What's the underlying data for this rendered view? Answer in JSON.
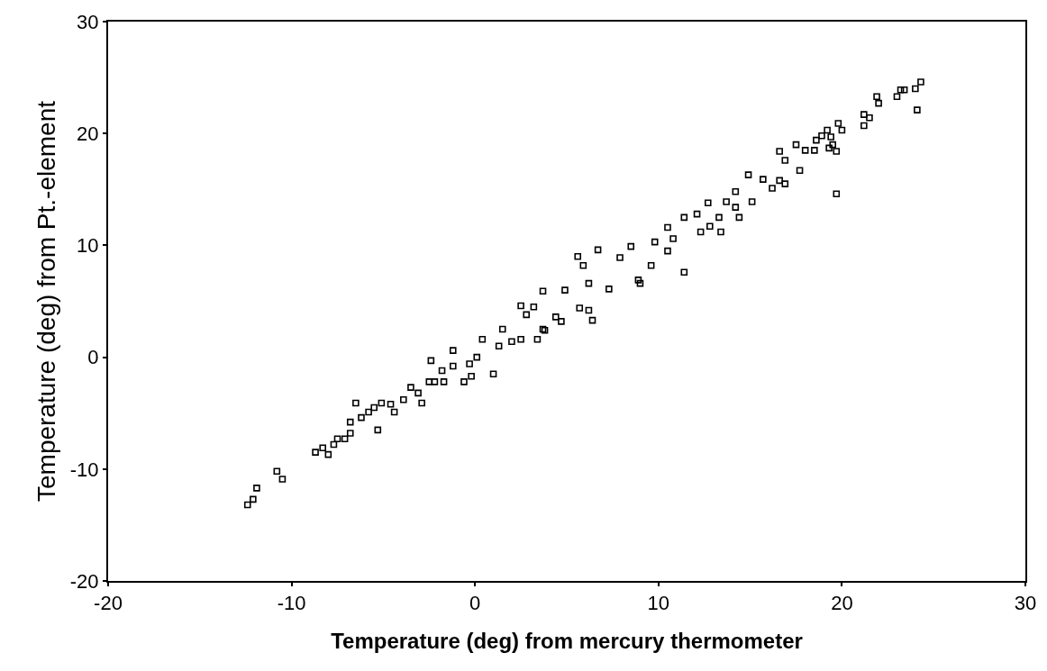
{
  "chart_data": {
    "type": "scatter",
    "xlabel": "Temperature (deg) from mercury thermometer",
    "ylabel": "Temperature (deg) from Pt.-element",
    "xlim": [
      -20,
      30
    ],
    "xticks": [
      -20,
      -10,
      0,
      10,
      20,
      30
    ],
    "ylim": [
      -20,
      30
    ],
    "yticks": [
      -20,
      -10,
      0,
      10,
      20,
      30
    ],
    "marker": "square",
    "series": [
      {
        "color": "#000000",
        "x": [
          -12.4,
          -12.1,
          -11.9,
          -10.8,
          -10.5,
          -8.7,
          -8.3,
          -8.0,
          -7.7,
          -7.5,
          -7.1,
          -6.8,
          -6.5,
          -6.8,
          -6.2,
          -5.8,
          -5.5,
          -5.3,
          -5.1,
          -4.6,
          -4.4,
          -3.9,
          -3.5,
          -3.1,
          -2.9,
          -2.4,
          -2.5,
          -2.2,
          -1.7,
          -1.8,
          -1.2,
          -1.2,
          -0.6,
          -0.2,
          -0.3,
          0.1,
          0.4,
          1.0,
          1.3,
          1.5,
          2.0,
          2.5,
          2.5,
          2.8,
          3.4,
          3.7,
          3.7,
          3.2,
          4.4,
          4.7,
          4.9,
          5.7,
          3.8,
          5.6,
          5.9,
          6.7,
          6.4,
          6.2,
          6.2,
          7.3,
          7.9,
          8.5,
          8.9,
          9.0,
          9.6,
          9.8,
          10.5,
          10.5,
          10.8,
          11.4,
          11.4,
          12.1,
          12.3,
          12.8,
          13.4,
          13.3,
          12.7,
          13.7,
          14.2,
          14.4,
          14.2,
          14.9,
          15.1,
          15.7,
          16.2,
          16.6,
          16.9,
          16.6,
          16.9,
          17.5,
          17.7,
          18.0,
          18.5,
          18.6,
          18.9,
          19.2,
          19.3,
          19.4,
          19.5,
          19.7,
          19.7,
          19.8,
          20.0,
          21.2,
          21.2,
          21.5,
          21.9,
          22.0,
          23.0,
          23.2,
          23.4,
          24.0,
          24.1,
          24.3
        ],
        "values": [
          -13.2,
          -12.7,
          -11.7,
          -10.2,
          -10.9,
          -8.5,
          -8.1,
          -8.7,
          -7.8,
          -7.3,
          -7.3,
          -6.8,
          -4.1,
          -5.8,
          -5.4,
          -4.9,
          -4.5,
          -6.5,
          -4.1,
          -4.2,
          -4.9,
          -3.8,
          -2.7,
          -3.2,
          -4.1,
          -0.3,
          -2.2,
          -2.2,
          -2.2,
          -1.2,
          0.6,
          -0.8,
          -2.2,
          -1.7,
          -0.6,
          0,
          1.6,
          -1.5,
          1.0,
          2.5,
          1.4,
          4.6,
          1.6,
          3.8,
          1.6,
          2.5,
          5.9,
          4.5,
          3.6,
          3.2,
          6.0,
          4.4,
          2.4,
          9.0,
          8.2,
          9.6,
          3.3,
          4.2,
          6.6,
          6.1,
          8.9,
          9.9,
          6.9,
          6.6,
          8.2,
          10.3,
          9.5,
          11.6,
          10.6,
          7.6,
          12.5,
          12.8,
          11.2,
          11.7,
          11.2,
          12.5,
          13.8,
          13.9,
          13.4,
          12.5,
          14.8,
          16.3,
          13.9,
          15.9,
          15.1,
          15.8,
          15.5,
          18.4,
          17.6,
          19.0,
          16.7,
          18.5,
          18.5,
          19.4,
          19.8,
          20.3,
          18.7,
          19.7,
          19.0,
          18.4,
          14.6,
          20.9,
          20.3,
          21.7,
          20.7,
          21.4,
          23.3,
          22.7,
          23.3,
          23.9,
          23.9,
          24.0,
          22.1,
          24.6
        ]
      }
    ]
  }
}
